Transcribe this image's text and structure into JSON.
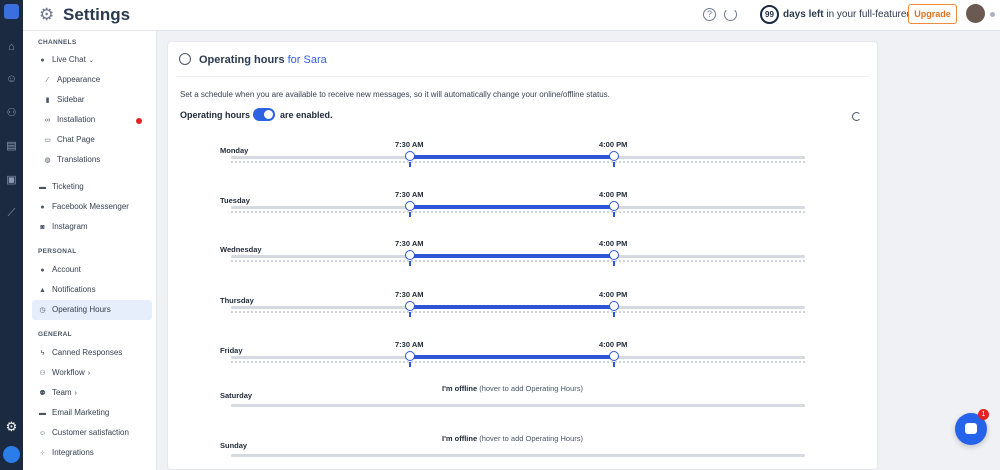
{
  "header": {
    "title": "Settings",
    "trial_days": "99",
    "trial_bold": "days left",
    "trial_rest": " in your full-featured trial",
    "upgrade_label": "Upgrade"
  },
  "sidebar": {
    "sections": {
      "channels": "CHANNELS",
      "personal": "PERSONAL",
      "general": "GENERAL"
    },
    "items": [
      {
        "label": "Live Chat",
        "icon": "chat-icon"
      },
      {
        "label": "Appearance",
        "icon": "brush-icon"
      },
      {
        "label": "Sidebar",
        "icon": "bookmark-icon"
      },
      {
        "label": "Installation",
        "icon": "link-icon"
      },
      {
        "label": "Chat Page",
        "icon": "monitor-icon"
      },
      {
        "label": "Translations",
        "icon": "globe-icon"
      },
      {
        "label": "Ticketing",
        "icon": "ticket-icon"
      },
      {
        "label": "Facebook Messenger",
        "icon": "messenger-icon"
      },
      {
        "label": "Instagram",
        "icon": "instagram-icon"
      },
      {
        "label": "Account",
        "icon": "user-icon"
      },
      {
        "label": "Notifications",
        "icon": "bell-icon"
      },
      {
        "label": "Operating Hours",
        "icon": "clock-icon"
      },
      {
        "label": "Canned Responses",
        "icon": "bolt-icon"
      },
      {
        "label": "Workflow",
        "icon": "workflow-icon"
      },
      {
        "label": "Team",
        "icon": "team-icon"
      },
      {
        "label": "Email Marketing",
        "icon": "email-icon"
      },
      {
        "label": "Customer satisfaction",
        "icon": "smile-icon"
      },
      {
        "label": "Integrations",
        "icon": "grid-icon"
      }
    ]
  },
  "main": {
    "title": "Operating hours",
    "title_for": "for Sara",
    "description": "Set a schedule when you are available to receive new messages, so it will automatically change your online/offline status.",
    "toggle_label": "Operating hours",
    "toggle_status": "are enabled.",
    "toggle_on": true,
    "days": [
      {
        "name": "Monday",
        "start": "7:30 AM",
        "end": "4:00 PM"
      },
      {
        "name": "Tuesday",
        "start": "7:30 AM",
        "end": "4:00 PM"
      },
      {
        "name": "Wednesday",
        "start": "7:30 AM",
        "end": "4:00 PM"
      },
      {
        "name": "Thursday",
        "start": "7:30 AM",
        "end": "4:00 PM"
      },
      {
        "name": "Friday",
        "start": "7:30 AM",
        "end": "4:00 PM"
      },
      {
        "name": "Saturday",
        "offline": "I'm offline",
        "hint": "(hover to add Operating Hours)"
      },
      {
        "name": "Sunday",
        "offline": "I'm offline",
        "hint": "(hover to add Operating Hours)"
      }
    ]
  },
  "chat_widget": {
    "badge_count": "1"
  },
  "colors": {
    "accent": "#2d55d6",
    "rail": "#1b2a41",
    "upgrade": "#e4701e"
  }
}
